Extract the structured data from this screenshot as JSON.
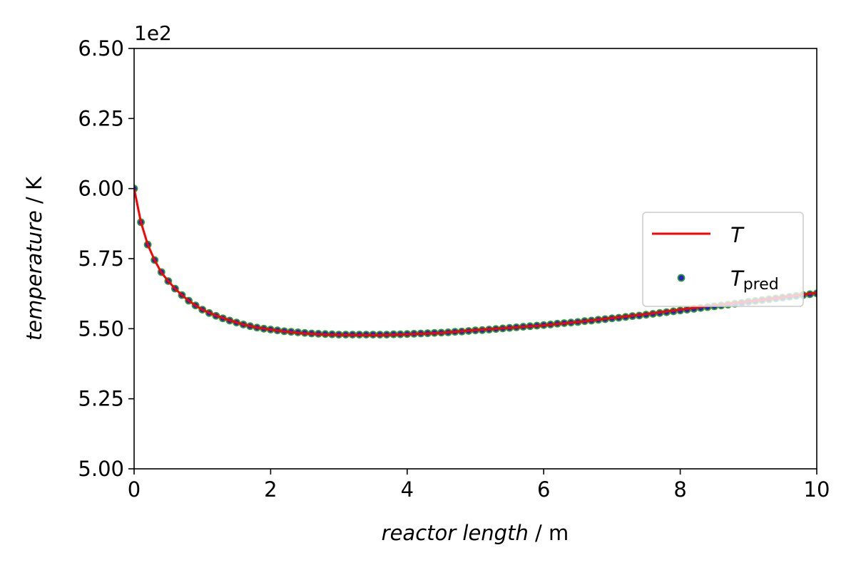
{
  "chart_data": {
    "type": "line",
    "offset_text": "1e2",
    "xlabel": {
      "italic": "reactor length",
      "unit": " / m"
    },
    "ylabel": {
      "italic": "temperature",
      "unit": " / K"
    },
    "xlim": [
      0,
      10
    ],
    "ylim": [
      5.0,
      6.5
    ],
    "xticks": [
      0,
      2,
      4,
      6,
      8,
      10
    ],
    "xtick_labels": [
      "0",
      "2",
      "4",
      "6",
      "8",
      "10"
    ],
    "yticks": [
      5.0,
      5.25,
      5.5,
      5.75,
      6.0,
      6.25,
      6.5
    ],
    "ytick_labels": [
      "5.00",
      "5.25",
      "5.50",
      "5.75",
      "6.00",
      "6.25",
      "6.50"
    ],
    "grid": false,
    "legend_position": "center-right",
    "legend": [
      {
        "label": "T",
        "subscript": "",
        "kind": "line",
        "color": "#ff0000"
      },
      {
        "label": "T",
        "subscript": "pred",
        "kind": "marker",
        "color": "#2222cc",
        "edge_color": "#2a9d2a"
      }
    ],
    "series": [
      {
        "kind": "line",
        "color": "#ff0000",
        "x": [
          0,
          0.1,
          0.2,
          0.3,
          0.4,
          0.5,
          0.6,
          0.7,
          0.8,
          0.9,
          1.0,
          1.2,
          1.4,
          1.6,
          1.8,
          2.0,
          2.2,
          2.5,
          2.8,
          3.0,
          3.3,
          3.6,
          4.0,
          4.5,
          5.0,
          5.5,
          6.0,
          6.5,
          7.0,
          7.5,
          8.0,
          8.5,
          9.0,
          9.5,
          10.0
        ],
        "y": [
          6.0,
          5.88,
          5.8,
          5.745,
          5.7,
          5.67,
          5.643,
          5.62,
          5.6,
          5.583,
          5.568,
          5.547,
          5.53,
          5.515,
          5.504,
          5.497,
          5.49,
          5.483,
          5.479,
          5.478,
          5.477,
          5.477,
          5.48,
          5.485,
          5.495,
          5.503,
          5.512,
          5.524,
          5.538,
          5.552,
          5.568,
          5.583,
          5.597,
          5.612,
          5.628
        ]
      },
      {
        "kind": "scatter",
        "color": "#2222cc",
        "edge_color": "#2a9d2a",
        "x": [
          0,
          0.1,
          0.2,
          0.3,
          0.4,
          0.5,
          0.6,
          0.7,
          0.8,
          0.9,
          1.0,
          1.1,
          1.2,
          1.3,
          1.4,
          1.5,
          1.6,
          1.7,
          1.8,
          1.9,
          2.0,
          2.1,
          2.2,
          2.3,
          2.4,
          2.5,
          2.6,
          2.7,
          2.8,
          2.9,
          3.0,
          3.1,
          3.2,
          3.3,
          3.4,
          3.5,
          3.6,
          3.7,
          3.8,
          3.9,
          4.0,
          4.1,
          4.2,
          4.3,
          4.4,
          4.5,
          4.6,
          4.7,
          4.8,
          4.9,
          5.0,
          5.1,
          5.2,
          5.3,
          5.4,
          5.5,
          5.6,
          5.7,
          5.8,
          5.9,
          6.0,
          6.1,
          6.2,
          6.3,
          6.4,
          6.5,
          6.6,
          6.7,
          6.8,
          6.9,
          7.0,
          7.1,
          7.2,
          7.3,
          7.4,
          7.5,
          7.6,
          7.7,
          7.8,
          7.9,
          8.0,
          8.1,
          8.2,
          8.3,
          8.4,
          8.5,
          8.6,
          8.7,
          8.8,
          8.9,
          9.0,
          9.1,
          9.2,
          9.3,
          9.4,
          9.5,
          9.6,
          9.7,
          9.8,
          9.9,
          10.0
        ],
        "y": [
          6.0,
          5.88,
          5.8,
          5.745,
          5.702,
          5.67,
          5.643,
          5.62,
          5.6,
          5.583,
          5.568,
          5.556,
          5.546,
          5.537,
          5.529,
          5.522,
          5.515,
          5.509,
          5.504,
          5.5,
          5.497,
          5.494,
          5.491,
          5.489,
          5.487,
          5.485,
          5.483,
          5.482,
          5.481,
          5.48,
          5.479,
          5.479,
          5.479,
          5.479,
          5.479,
          5.479,
          5.479,
          5.479,
          5.48,
          5.48,
          5.481,
          5.482,
          5.483,
          5.484,
          5.485,
          5.486,
          5.487,
          5.489,
          5.49,
          5.492,
          5.494,
          5.495,
          5.497,
          5.499,
          5.501,
          5.503,
          5.505,
          5.507,
          5.509,
          5.511,
          5.513,
          5.515,
          5.518,
          5.52,
          5.522,
          5.524,
          5.527,
          5.529,
          5.532,
          5.534,
          5.537,
          5.539,
          5.542,
          5.545,
          5.547,
          5.55,
          5.553,
          5.556,
          5.559,
          5.562,
          5.565,
          5.568,
          5.571,
          5.574,
          5.577,
          5.58,
          5.583,
          5.586,
          5.589,
          5.592,
          5.596,
          5.599,
          5.602,
          5.605,
          5.608,
          5.611,
          5.614,
          5.617,
          5.62,
          5.623,
          5.626
        ]
      }
    ]
  }
}
